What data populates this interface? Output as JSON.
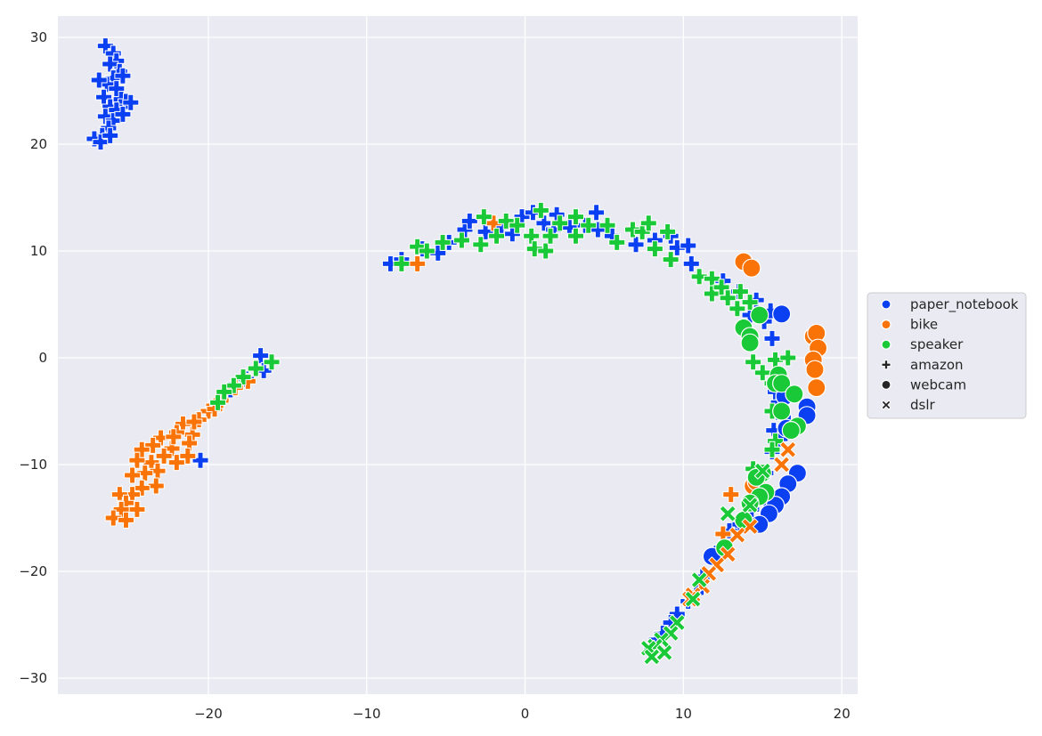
{
  "chart_data": {
    "type": "scatter",
    "title": "",
    "xlabel": "",
    "ylabel": "",
    "xlim": [
      -29.5,
      21
    ],
    "ylim": [
      -31.5,
      32
    ],
    "xticks": [
      "−20",
      "−10",
      "0",
      "10",
      "20"
    ],
    "xtick_values": [
      -20,
      -10,
      0,
      10,
      20
    ],
    "yticks": [
      "−30",
      "−20",
      "−10",
      "0",
      "10",
      "20",
      "30"
    ],
    "ytick_values": [
      -30,
      -20,
      -10,
      0,
      10,
      20,
      30
    ],
    "grid": true,
    "legend_placement": "center-right-outside",
    "hue_legend": [
      {
        "label": "paper_notebook",
        "color": "#0b3ff2"
      },
      {
        "label": "bike",
        "color": "#f97306"
      },
      {
        "label": "speaker",
        "color": "#1ac938"
      }
    ],
    "style_legend": [
      {
        "label": "amazon",
        "marker": "plus"
      },
      {
        "label": "webcam",
        "marker": "circle"
      },
      {
        "label": "dslr",
        "marker": "x"
      }
    ],
    "series": [
      {
        "category": "paper_notebook",
        "domain": "amazon",
        "points": [
          [
            -26.5,
            29.2
          ],
          [
            -26,
            28.5
          ],
          [
            -25.8,
            27.8
          ],
          [
            -26.2,
            27.5
          ],
          [
            -25.6,
            26.8
          ],
          [
            -26,
            26.2
          ],
          [
            -26.4,
            25.6
          ],
          [
            -25.8,
            25.2
          ],
          [
            -26.6,
            24.4
          ],
          [
            -25.5,
            24.2
          ],
          [
            -25.2,
            24
          ],
          [
            -26.2,
            23.5
          ],
          [
            -25.8,
            23.2
          ],
          [
            -26.5,
            22.6
          ],
          [
            -26,
            22.2
          ],
          [
            -26.3,
            21.5
          ],
          [
            -26.7,
            20.8
          ],
          [
            -27.2,
            20.5
          ],
          [
            -26.8,
            20.2
          ],
          [
            -26.2,
            20.8
          ],
          [
            -25.4,
            22.8
          ],
          [
            -24.9,
            23.9
          ],
          [
            -25.4,
            26.4
          ],
          [
            -26.9,
            26
          ],
          [
            -8.5,
            8.8
          ],
          [
            -7.8,
            9.2
          ],
          [
            -6.5,
            10.2
          ],
          [
            -5.5,
            9.8
          ],
          [
            -4.8,
            10.8
          ],
          [
            -3.8,
            12
          ],
          [
            -3.5,
            12.8
          ],
          [
            -2.5,
            11.8
          ],
          [
            -1.5,
            12.2
          ],
          [
            -0.8,
            11.6
          ],
          [
            -0.2,
            13.2
          ],
          [
            0.5,
            13.6
          ],
          [
            1.2,
            12.6
          ],
          [
            1.8,
            12
          ],
          [
            2,
            13.4
          ],
          [
            2.8,
            12.2
          ],
          [
            3.8,
            12.4
          ],
          [
            4.5,
            13.6
          ],
          [
            4.6,
            12
          ],
          [
            5.5,
            11.4
          ],
          [
            7,
            10.6
          ],
          [
            8.2,
            11
          ],
          [
            9.2,
            11.4
          ],
          [
            9.6,
            10.3
          ],
          [
            10.3,
            10.5
          ],
          [
            10.5,
            8.8
          ],
          [
            12.5,
            7.2
          ],
          [
            13.5,
            6.2
          ],
          [
            14.6,
            5.4
          ],
          [
            15.5,
            4.4
          ],
          [
            14.2,
            4
          ],
          [
            15.1,
            3.4
          ],
          [
            13.9,
            2.8
          ],
          [
            15.6,
            1.8
          ],
          [
            15.8,
            -3.2
          ],
          [
            16,
            -4.2
          ],
          [
            16.3,
            -5.6
          ],
          [
            15.7,
            -6.8
          ],
          [
            16.1,
            -7.6
          ],
          [
            15.6,
            -8.8
          ],
          [
            15.2,
            -10.8
          ],
          [
            14.8,
            -12.4
          ],
          [
            15.2,
            -13.2
          ],
          [
            14.3,
            -14.2
          ],
          [
            13.4,
            -15.6
          ],
          [
            12.9,
            -16.2
          ],
          [
            12.4,
            -17.8
          ],
          [
            11.8,
            -18.6
          ],
          [
            11.2,
            -20.5
          ],
          [
            10.8,
            -22
          ],
          [
            10.3,
            -22.8
          ],
          [
            9.6,
            -24
          ],
          [
            9.2,
            -24.8
          ],
          [
            8.7,
            -25.8
          ],
          [
            8.3,
            -26.4
          ],
          [
            8.0,
            -27.2
          ],
          [
            -16.7,
            0.2
          ],
          [
            -16.5,
            -1.2
          ],
          [
            -17.6,
            -2
          ],
          [
            -18.6,
            -3
          ],
          [
            -20.5,
            -9.6
          ]
        ]
      },
      {
        "category": "bike",
        "domain": "amazon",
        "points": [
          [
            -20,
            -5
          ],
          [
            -20.6,
            -5.8
          ],
          [
            -21.6,
            -6.2
          ],
          [
            -21,
            -7.2
          ],
          [
            -22,
            -7
          ],
          [
            -21.2,
            -8
          ],
          [
            -22.3,
            -8.5
          ],
          [
            -23,
            -7.5
          ],
          [
            -23.5,
            -8.2
          ],
          [
            -24.2,
            -8.6
          ],
          [
            -22.8,
            -9.2
          ],
          [
            -23.6,
            -9.8
          ],
          [
            -24.5,
            -9.6
          ],
          [
            -22,
            -9.8
          ],
          [
            -21.3,
            -9.2
          ],
          [
            -23.2,
            -10.6
          ],
          [
            -24,
            -10.8
          ],
          [
            -24.8,
            -11
          ],
          [
            -23.3,
            -12
          ],
          [
            -24.2,
            -12.2
          ],
          [
            -24.8,
            -12.8
          ],
          [
            -25.6,
            -12.8
          ],
          [
            -25.2,
            -13.6
          ],
          [
            -24.5,
            -14.2
          ],
          [
            -25.5,
            -14.2
          ],
          [
            -26,
            -15
          ],
          [
            -25.2,
            -15.2
          ],
          [
            -22.2,
            -7.4
          ],
          [
            -20.9,
            -6
          ],
          [
            -19.6,
            -4.8
          ],
          [
            -19.2,
            -4
          ],
          [
            -18.3,
            -2.8
          ],
          [
            -17.5,
            -2.2
          ],
          [
            -6.8,
            8.8
          ],
          [
            -2,
            12.6
          ],
          [
            13,
            -12.8
          ],
          [
            12.5,
            -16.5
          ]
        ]
      },
      {
        "category": "speaker",
        "domain": "amazon",
        "points": [
          [
            -7.8,
            8.8
          ],
          [
            -6.8,
            10.4
          ],
          [
            -6.2,
            10
          ],
          [
            -5.2,
            10.8
          ],
          [
            -4,
            11
          ],
          [
            -2.8,
            10.6
          ],
          [
            -2.6,
            13.2
          ],
          [
            -1.8,
            11.4
          ],
          [
            -1.2,
            12.8
          ],
          [
            -0.5,
            12.4
          ],
          [
            0.4,
            11.4
          ],
          [
            0.6,
            10.2
          ],
          [
            1,
            13.8
          ],
          [
            1.3,
            10
          ],
          [
            1.6,
            11.4
          ],
          [
            2.2,
            12.6
          ],
          [
            3.2,
            13.2
          ],
          [
            3.2,
            11.4
          ],
          [
            4,
            12.4
          ],
          [
            5.2,
            12.4
          ],
          [
            5.8,
            10.8
          ],
          [
            6.8,
            12
          ],
          [
            7.4,
            11.8
          ],
          [
            7.8,
            12.6
          ],
          [
            8.2,
            10.2
          ],
          [
            9,
            11.8
          ],
          [
            9.2,
            9.2
          ],
          [
            11,
            7.6
          ],
          [
            11.8,
            7.4
          ],
          [
            11.8,
            6
          ],
          [
            12.4,
            6.6
          ],
          [
            12.8,
            5.6
          ],
          [
            13.4,
            4.6
          ],
          [
            13.6,
            6.2
          ],
          [
            14.2,
            5.2
          ],
          [
            14.4,
            -0.4
          ],
          [
            15,
            -1.4
          ],
          [
            15.6,
            -2.4
          ],
          [
            15.8,
            -0.2
          ],
          [
            16.6,
            0
          ],
          [
            15.6,
            -5
          ],
          [
            15.8,
            -7.8
          ],
          [
            15.6,
            -8.6
          ],
          [
            14.4,
            -10.4
          ],
          [
            -16,
            -0.4
          ],
          [
            -17,
            -1
          ],
          [
            -17.8,
            -1.8
          ],
          [
            -18.4,
            -2.6
          ],
          [
            -19,
            -3.2
          ],
          [
            -19.4,
            -4.2
          ]
        ]
      },
      {
        "category": "paper_notebook",
        "domain": "webcam",
        "points": [
          [
            16.2,
            4.1
          ],
          [
            17.8,
            -4.6
          ],
          [
            17.8,
            -5.4
          ],
          [
            16.5,
            -6.6
          ],
          [
            17.2,
            -10.8
          ],
          [
            16.6,
            -11.8
          ],
          [
            16.2,
            -13
          ],
          [
            15.8,
            -13.8
          ],
          [
            15.4,
            -14.6
          ],
          [
            14.8,
            -15.6
          ],
          [
            14.2,
            -13.6
          ],
          [
            11.8,
            -18.6
          ],
          [
            16.4,
            -3.6
          ]
        ]
      },
      {
        "category": "bike",
        "domain": "webcam",
        "points": [
          [
            13.8,
            9
          ],
          [
            14.3,
            8.4
          ],
          [
            18.2,
            2
          ],
          [
            18.4,
            2.3
          ],
          [
            18.5,
            0.9
          ],
          [
            18.2,
            -0.2
          ],
          [
            18.3,
            -1.1
          ],
          [
            18.4,
            -2.8
          ],
          [
            14.4,
            -12
          ],
          [
            14.6,
            -11.6
          ]
        ]
      },
      {
        "category": "speaker",
        "domain": "webcam",
        "points": [
          [
            13.8,
            2.8
          ],
          [
            14.2,
            2
          ],
          [
            14.2,
            1.4
          ],
          [
            14.8,
            4
          ],
          [
            16,
            -1.6
          ],
          [
            15.8,
            -2.4
          ],
          [
            16.2,
            -2.4
          ],
          [
            17,
            -3.4
          ],
          [
            16.2,
            -5
          ],
          [
            17.2,
            -6.4
          ],
          [
            16.8,
            -6.8
          ],
          [
            15,
            -10.8
          ],
          [
            14.6,
            -11.2
          ],
          [
            15.2,
            -12.6
          ],
          [
            14.8,
            -13
          ],
          [
            14.2,
            -13.6
          ],
          [
            13.8,
            -15.2
          ],
          [
            12.6,
            -17.8
          ]
        ]
      },
      {
        "category": "bike",
        "domain": "dslr",
        "points": [
          [
            16.6,
            -8.6
          ],
          [
            16.2,
            -10
          ],
          [
            14.2,
            -15.8
          ],
          [
            13.4,
            -16.6
          ],
          [
            12.8,
            -18.4
          ],
          [
            12.1,
            -19.4
          ],
          [
            11.6,
            -20.2
          ],
          [
            11.2,
            -21.4
          ],
          [
            10.6,
            -22.2
          ],
          [
            10.4,
            -22.6
          ]
        ]
      },
      {
        "category": "speaker",
        "domain": "dslr",
        "points": [
          [
            15,
            -10.6
          ],
          [
            14.2,
            -13.8
          ],
          [
            12.8,
            -14.6
          ],
          [
            11,
            -20.8
          ],
          [
            10.6,
            -22.6
          ],
          [
            9.6,
            -24.8
          ],
          [
            9.2,
            -25.8
          ],
          [
            8.6,
            -26.4
          ],
          [
            8.2,
            -27
          ],
          [
            7.8,
            -27.2
          ],
          [
            8,
            -28
          ],
          [
            8.8,
            -27.6
          ]
        ]
      }
    ]
  }
}
